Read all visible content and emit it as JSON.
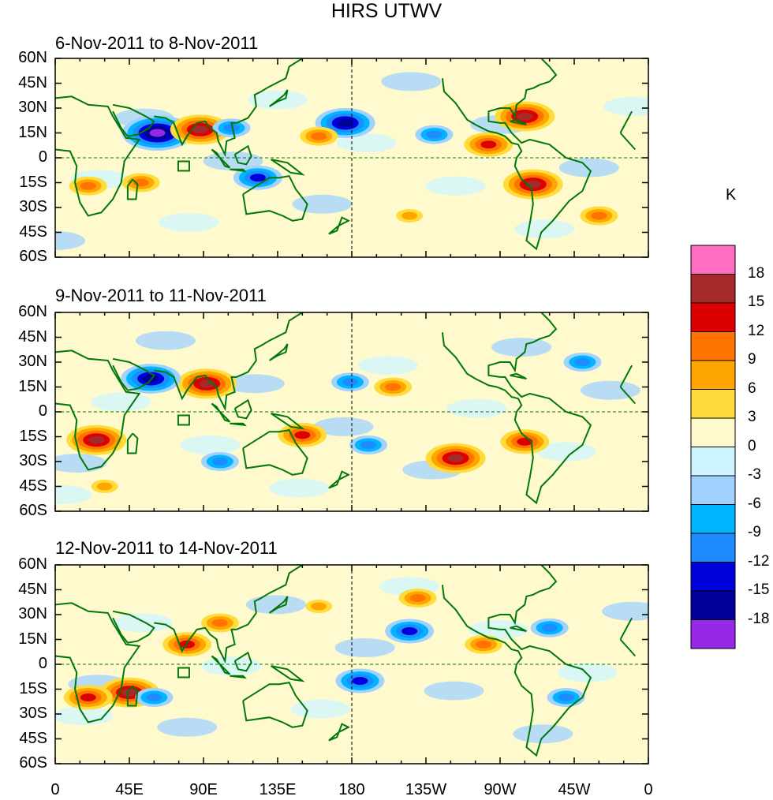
{
  "title": "HIRS UTWV",
  "panels": [
    {
      "label": "6-Nov-2011 to 8-Nov-2011"
    },
    {
      "label": "9-Nov-2011 to 11-Nov-2011"
    },
    {
      "label": "12-Nov-2011 to 14-Nov-2011"
    }
  ],
  "lat_labels": [
    "60N",
    "45N",
    "30N",
    "15N",
    "0",
    "15S",
    "30S",
    "45S",
    "60S"
  ],
  "lon_labels": [
    "0",
    "45E",
    "90E",
    "135E",
    "180",
    "135W",
    "90W",
    "45W",
    "0"
  ],
  "colorbar": {
    "units": "K",
    "labels": [
      "18",
      "15",
      "12",
      "9",
      "6",
      "3",
      "0",
      "-3",
      "-6",
      "-9",
      "-12",
      "-15",
      "-18"
    ],
    "colors": [
      "#ff6ec0",
      "#a52a2a",
      "#dc0000",
      "#ff7300",
      "#ffa500",
      "#ffdc3c",
      "#fffacd",
      "#cdf5ff",
      "#a0d2ff",
      "#00b4ff",
      "#1e8cff",
      "#0000dc",
      "#000096",
      "#9628e6"
    ]
  },
  "map_colors": {
    "coast": "#00780a",
    "grid": "#000000"
  },
  "anomaly_features": [
    [
      {
        "lon": 62,
        "lat": 15,
        "value": -18
      },
      {
        "lon": 88,
        "lat": 17,
        "value": 15
      },
      {
        "lon": 123,
        "lat": -12,
        "value": -12
      },
      {
        "lon": 107,
        "lat": 18,
        "value": -9
      },
      {
        "lon": 176,
        "lat": 21,
        "value": -15
      },
      {
        "lon": -75,
        "lat": 25,
        "value": 15
      },
      {
        "lon": -97,
        "lat": 8,
        "value": 12
      },
      {
        "lon": -70,
        "lat": -16,
        "value": 15
      },
      {
        "lon": 20,
        "lat": -17,
        "value": 9
      },
      {
        "lon": 52,
        "lat": -15,
        "value": 9
      },
      {
        "lon": -130,
        "lat": 14,
        "value": -9
      },
      {
        "lon": -30,
        "lat": -35,
        "value": 9
      },
      {
        "lon": 160,
        "lat": 13,
        "value": 9
      },
      {
        "lon": -145,
        "lat": -35,
        "value": 6
      }
    ],
    [
      {
        "lon": 25,
        "lat": -17,
        "value": 15
      },
      {
        "lon": 92,
        "lat": 17,
        "value": 15
      },
      {
        "lon": 58,
        "lat": 20,
        "value": -15
      },
      {
        "lon": -117,
        "lat": -28,
        "value": 15
      },
      {
        "lon": -75,
        "lat": -18,
        "value": 12
      },
      {
        "lon": 179,
        "lat": 18,
        "value": -9
      },
      {
        "lon": -155,
        "lat": 15,
        "value": 9
      },
      {
        "lon": -170,
        "lat": -20,
        "value": -9
      },
      {
        "lon": 150,
        "lat": -14,
        "value": 12
      },
      {
        "lon": 30,
        "lat": -45,
        "value": 6
      },
      {
        "lon": -40,
        "lat": 30,
        "value": -9
      },
      {
        "lon": 100,
        "lat": -30,
        "value": -9
      }
    ],
    [
      {
        "lon": 45,
        "lat": -17,
        "value": 15
      },
      {
        "lon": 80,
        "lat": 12,
        "value": 12
      },
      {
        "lon": 20,
        "lat": -20,
        "value": 12
      },
      {
        "lon": -140,
        "lat": 40,
        "value": 9
      },
      {
        "lon": -145,
        "lat": 20,
        "value": -12
      },
      {
        "lon": -175,
        "lat": -10,
        "value": -12
      },
      {
        "lon": -100,
        "lat": 12,
        "value": 9
      },
      {
        "lon": 100,
        "lat": 25,
        "value": 9
      },
      {
        "lon": -50,
        "lat": -20,
        "value": -9
      },
      {
        "lon": 60,
        "lat": -20,
        "value": -9
      },
      {
        "lon": -60,
        "lat": 22,
        "value": -9
      },
      {
        "lon": 160,
        "lat": 35,
        "value": 6
      }
    ]
  ]
}
